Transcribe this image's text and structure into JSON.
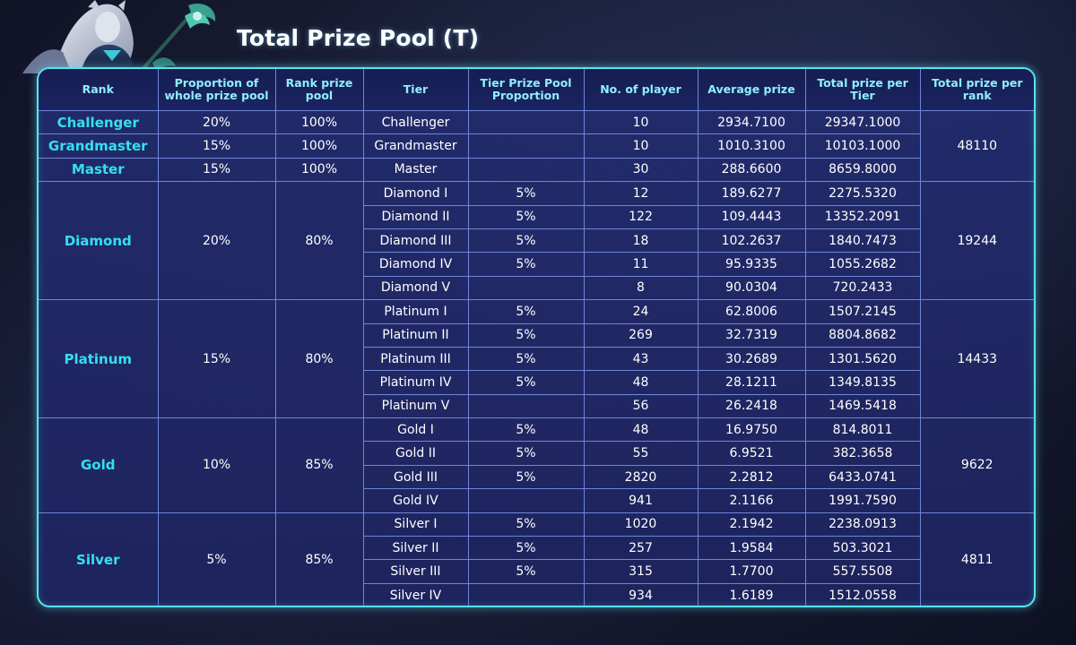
{
  "title": "Total Prize Pool (T)",
  "accent_color": "#58e3f0",
  "rank_color": "#34e0f0",
  "hero_image": "champion-portrait",
  "headers": [
    "Rank",
    "Proportion of whole prize pool",
    "Rank prize pool",
    "Tier",
    "Tier Prize Pool Proportion",
    "No. of player",
    "Average prize",
    "Total prize per Tier",
    "Total prize per rank"
  ],
  "groups": [
    {
      "name": "Challenger/Grandmaster/Master",
      "ranks": [
        {
          "rank": "Challenger",
          "proportion": "20%",
          "rank_pool": "100%"
        },
        {
          "rank": "Grandmaster",
          "proportion": "15%",
          "rank_pool": "100%"
        },
        {
          "rank": "Master",
          "proportion": "15%",
          "rank_pool": "100%"
        }
      ],
      "total_per_rank": "48110",
      "tiers": [
        {
          "tier": "Challenger",
          "tier_pct": "",
          "players": "10",
          "avg": "2934.7100",
          "total": "29347.1000"
        },
        {
          "tier": "Grandmaster",
          "tier_pct": "",
          "players": "10",
          "avg": "1010.3100",
          "total": "10103.1000"
        },
        {
          "tier": "Master",
          "tier_pct": "",
          "players": "30",
          "avg": "288.6600",
          "total": "8659.8000"
        }
      ]
    },
    {
      "rank": "Diamond",
      "proportion": "20%",
      "rank_pool": "80%",
      "total_per_rank": "19244",
      "tiers": [
        {
          "tier": "Diamond I",
          "tier_pct": "5%",
          "players": "12",
          "avg": "189.6277",
          "total": "2275.5320"
        },
        {
          "tier": "Diamond II",
          "tier_pct": "5%",
          "players": "122",
          "avg": "109.4443",
          "total": "13352.2091"
        },
        {
          "tier": "Diamond III",
          "tier_pct": "5%",
          "players": "18",
          "avg": "102.2637",
          "total": "1840.7473"
        },
        {
          "tier": "Diamond IV",
          "tier_pct": "5%",
          "players": "11",
          "avg": "95.9335",
          "total": "1055.2682"
        },
        {
          "tier": "Diamond V",
          "tier_pct": "",
          "players": "8",
          "avg": "90.0304",
          "total": "720.2433"
        }
      ]
    },
    {
      "rank": "Platinum",
      "proportion": "15%",
      "rank_pool": "80%",
      "total_per_rank": "14433",
      "tiers": [
        {
          "tier": "Platinum I",
          "tier_pct": "5%",
          "players": "24",
          "avg": "62.8006",
          "total": "1507.2145"
        },
        {
          "tier": "Platinum II",
          "tier_pct": "5%",
          "players": "269",
          "avg": "32.7319",
          "total": "8804.8682"
        },
        {
          "tier": "Platinum III",
          "tier_pct": "5%",
          "players": "43",
          "avg": "30.2689",
          "total": "1301.5620"
        },
        {
          "tier": "Platinum IV",
          "tier_pct": "5%",
          "players": "48",
          "avg": "28.1211",
          "total": "1349.8135"
        },
        {
          "tier": "Platinum V",
          "tier_pct": "",
          "players": "56",
          "avg": "26.2418",
          "total": "1469.5418"
        }
      ]
    },
    {
      "rank": "Gold",
      "proportion": "10%",
      "rank_pool": "85%",
      "total_per_rank": "9622",
      "tiers": [
        {
          "tier": "Gold I",
          "tier_pct": "5%",
          "players": "48",
          "avg": "16.9750",
          "total": "814.8011"
        },
        {
          "tier": "Gold II",
          "tier_pct": "5%",
          "players": "55",
          "avg": "6.9521",
          "total": "382.3658"
        },
        {
          "tier": "Gold III",
          "tier_pct": "5%",
          "players": "2820",
          "avg": "2.2812",
          "total": "6433.0741"
        },
        {
          "tier": "Gold IV",
          "tier_pct": "",
          "players": "941",
          "avg": "2.1166",
          "total": "1991.7590"
        }
      ]
    },
    {
      "rank": "Silver",
      "proportion": "5%",
      "rank_pool": "85%",
      "total_per_rank": "4811",
      "tiers": [
        {
          "tier": "Silver I",
          "tier_pct": "5%",
          "players": "1020",
          "avg": "2.1942",
          "total": "2238.0913"
        },
        {
          "tier": "Silver II",
          "tier_pct": "5%",
          "players": "257",
          "avg": "1.9584",
          "total": "503.3021"
        },
        {
          "tier": "Silver III",
          "tier_pct": "5%",
          "players": "315",
          "avg": "1.7700",
          "total": "557.5508"
        },
        {
          "tier": "Silver IV",
          "tier_pct": "",
          "players": "934",
          "avg": "1.6189",
          "total": "1512.0558"
        }
      ]
    }
  ]
}
